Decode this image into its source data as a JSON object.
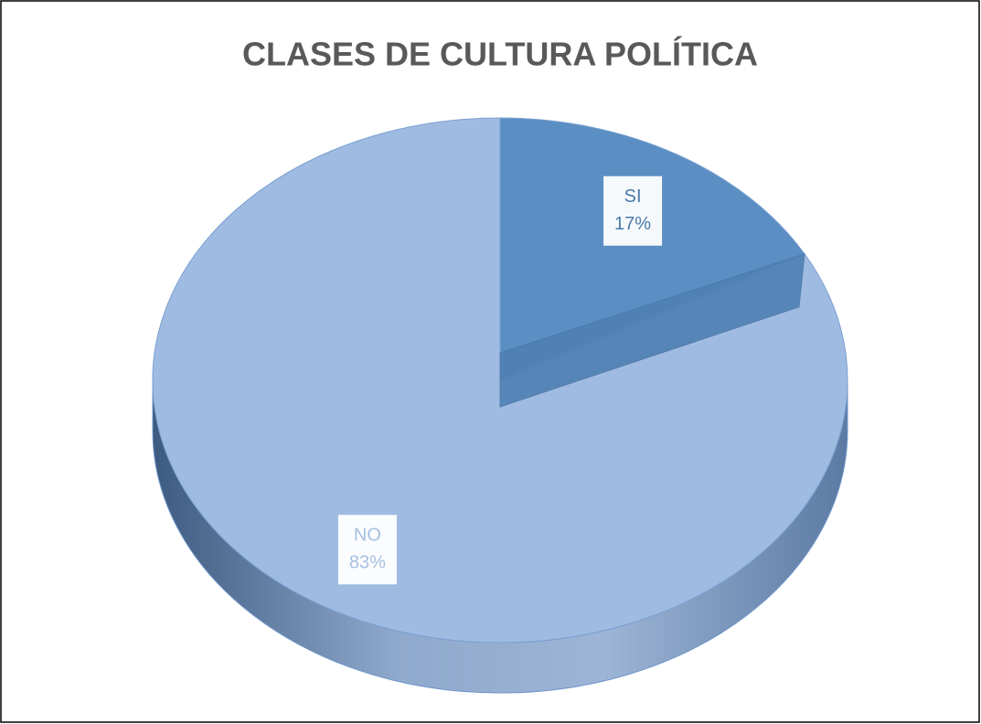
{
  "chart_data": {
    "type": "pie",
    "title": "CLASES DE CULTURA POLÍTICA",
    "categories": [
      "SI",
      "NO"
    ],
    "values": [
      17,
      83
    ],
    "value_labels": [
      "17%",
      "83%"
    ],
    "colors": [
      "#5b8fc3",
      "#9fbbe1"
    ]
  }
}
